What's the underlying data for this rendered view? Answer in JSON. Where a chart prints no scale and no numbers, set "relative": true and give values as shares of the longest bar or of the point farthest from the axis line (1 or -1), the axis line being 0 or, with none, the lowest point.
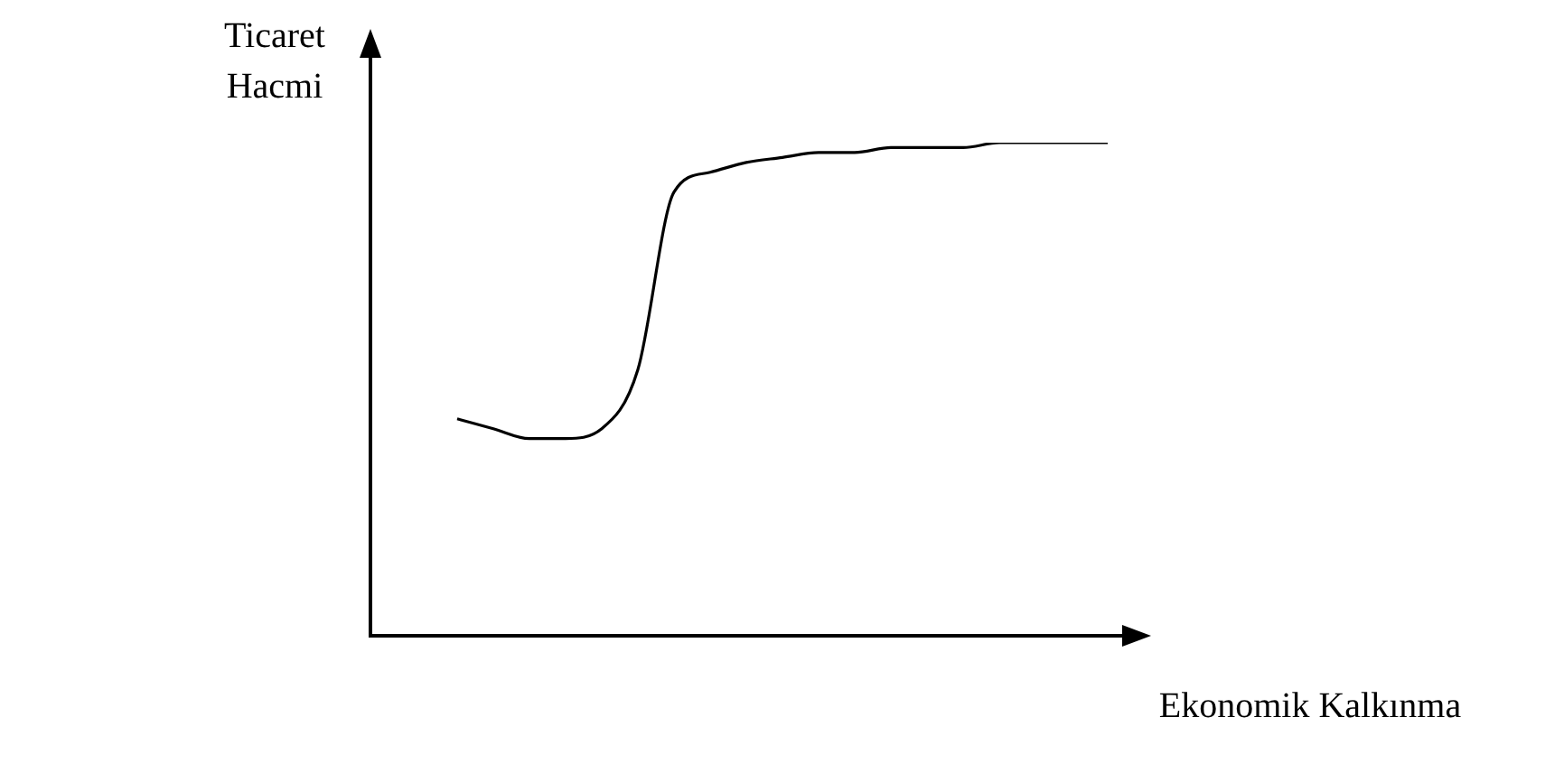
{
  "chart_data": {
    "type": "line",
    "xlabel": "Ekonomik Kalkınma",
    "ylabel": "Ticaret Hacmi",
    "relative": true,
    "color": "#000000",
    "categories": [
      null,
      null,
      null,
      null,
      null,
      null,
      null,
      null,
      null,
      null,
      null,
      null,
      null,
      null,
      null,
      null,
      null,
      null,
      null
    ],
    "values": [
      0.44,
      0.42,
      0.4,
      0.4,
      0.42,
      0.54,
      0.9,
      0.94,
      0.96,
      0.97,
      0.98,
      0.98,
      0.99,
      0.99,
      0.99,
      1.0,
      1.0,
      1.0,
      1.0
    ]
  }
}
